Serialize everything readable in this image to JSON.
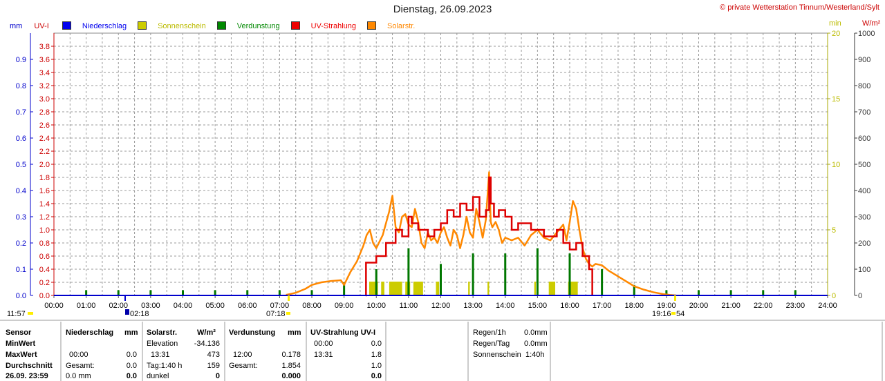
{
  "header": {
    "title": "Dienstag, 26.09.2023",
    "copyright": "© private Wetterstation Tinnum/Westerland/Sylt"
  },
  "colors": {
    "precip": "#0000cc",
    "sunshine": "#cccc00",
    "evap": "#007700",
    "uv": "#dd0000",
    "solar": "#ff8800"
  },
  "legend": [
    {
      "label": "Niederschlag",
      "color": "#0000ee"
    },
    {
      "label": "Sonnenschein",
      "color": "#cccc00",
      "text_color": "#bbbb00"
    },
    {
      "label": "Verdunstung",
      "color": "#008800"
    },
    {
      "label": "UV-Strahlung",
      "color": "#ee0000"
    },
    {
      "label": "Solarstr.",
      "color": "#ff8800"
    }
  ],
  "axes": {
    "left_unit_1": "mm",
    "left_unit_2": "UV-I",
    "right_unit_1": "min",
    "right_unit_2": "W/m²",
    "mm_ticks": [
      "0.0",
      "0.1",
      "0.2",
      "0.3",
      "0.4",
      "0.5",
      "0.6",
      "0.7",
      "0.8",
      "0.9"
    ],
    "uv_ticks": [
      "0.0",
      "0.2",
      "0.4",
      "0.6",
      "0.8",
      "1.0",
      "1.2",
      "1.4",
      "1.6",
      "1.8",
      "2.0",
      "2.2",
      "2.4",
      "2.6",
      "2.8",
      "3.0",
      "3.2",
      "3.4",
      "3.6",
      "3.8"
    ],
    "min_ticks": [
      "0",
      "5",
      "10",
      "15",
      "20"
    ],
    "wm2_ticks": [
      "0",
      "100",
      "200",
      "300",
      "400",
      "500",
      "600",
      "700",
      "800",
      "900",
      "1000"
    ],
    "x_ticks": [
      "00:00",
      "01:00",
      "02:00",
      "03:00",
      "04:00",
      "05:00",
      "06:00",
      "07:00",
      "08:00",
      "09:00",
      "10:00",
      "11:00",
      "12:00",
      "13:00",
      "14:00",
      "15:00",
      "16:00",
      "17:00",
      "18:00",
      "19:00",
      "20:00",
      "21:00",
      "22:00",
      "23:00",
      "24:00"
    ]
  },
  "below_axis": {
    "moonrise": "11:57",
    "moonset": "02:18",
    "sunrise": "07:18",
    "sunset": "19:16",
    "sunset_suffix": "54"
  },
  "chart_data": {
    "type": "line",
    "title": "Dienstag, 26.09.2023",
    "xlabel": "",
    "xlim": [
      "00:00",
      "24:00"
    ],
    "ylim_mm": [
      0,
      1.0
    ],
    "ylim_uv": [
      0,
      4.0
    ],
    "ylim_min": [
      0,
      20
    ],
    "ylim_wm2": [
      0,
      1000
    ],
    "grid": true,
    "series": [
      {
        "name": "Solarstr.",
        "axis": "W/m²",
        "x": [
          7.2,
          7.5,
          7.8,
          8.0,
          8.3,
          8.6,
          8.9,
          9.0,
          9.2,
          9.4,
          9.6,
          9.7,
          9.8,
          9.9,
          10.0,
          10.2,
          10.4,
          10.5,
          10.6,
          10.7,
          10.8,
          10.9,
          11.0,
          11.1,
          11.2,
          11.3,
          11.4,
          11.5,
          11.6,
          11.7,
          11.8,
          11.9,
          12.0,
          12.1,
          12.2,
          12.3,
          12.4,
          12.5,
          12.6,
          12.7,
          12.8,
          12.9,
          13.0,
          13.1,
          13.2,
          13.3,
          13.4,
          13.5,
          13.55,
          13.6,
          13.7,
          13.8,
          13.9,
          14.0,
          14.2,
          14.4,
          14.6,
          14.8,
          15.0,
          15.2,
          15.4,
          15.6,
          15.8,
          15.9,
          16.0,
          16.1,
          16.2,
          16.3,
          16.4,
          16.5,
          16.6,
          16.7,
          16.8,
          17.0,
          17.2,
          17.4,
          17.6,
          17.8,
          18.0,
          18.3,
          18.6,
          18.9,
          19.1,
          19.3
        ],
        "values": [
          2,
          10,
          25,
          40,
          50,
          55,
          58,
          40,
          90,
          130,
          190,
          230,
          250,
          200,
          180,
          230,
          320,
          380,
          260,
          240,
          300,
          310,
          270,
          260,
          330,
          280,
          200,
          180,
          240,
          210,
          220,
          200,
          240,
          260,
          220,
          190,
          250,
          230,
          180,
          230,
          300,
          240,
          220,
          330,
          280,
          220,
          290,
          470,
          280,
          260,
          280,
          250,
          200,
          220,
          210,
          220,
          190,
          230,
          250,
          220,
          210,
          240,
          270,
          210,
          280,
          360,
          330,
          250,
          180,
          140,
          120,
          110,
          120,
          115,
          95,
          80,
          65,
          50,
          35,
          22,
          12,
          5,
          2,
          0
        ]
      },
      {
        "name": "UV-Strahlung",
        "axis": "UV-I",
        "x": [
          9.67,
          9.68,
          10.0,
          10.3,
          10.4,
          10.6,
          10.8,
          11.0,
          11.1,
          11.3,
          11.5,
          11.6,
          11.8,
          12.0,
          12.2,
          12.4,
          12.6,
          12.8,
          13.0,
          13.2,
          13.4,
          13.5,
          13.55,
          13.65,
          13.8,
          14.0,
          14.2,
          14.4,
          14.6,
          14.8,
          15.0,
          15.2,
          15.4,
          15.6,
          15.8,
          16.0,
          16.2,
          16.4,
          16.6,
          16.68,
          16.7
        ],
        "values": [
          0,
          0.5,
          0.6,
          0.8,
          0.8,
          1.0,
          0.9,
          1.2,
          1.1,
          1.0,
          1.0,
          0.9,
          1.0,
          1.1,
          1.3,
          1.2,
          1.4,
          1.3,
          1.5,
          1.2,
          1.3,
          1.8,
          1.4,
          1.2,
          1.3,
          1.2,
          1.0,
          1.1,
          1.1,
          1.0,
          1.0,
          0.9,
          0.9,
          1.0,
          0.8,
          0.7,
          0.8,
          0.6,
          0.4,
          0.4,
          0
        ]
      },
      {
        "name": "Sonnenschein",
        "axis": "min",
        "bars": [
          {
            "start": 9.78,
            "end": 10.05,
            "value": 1
          },
          {
            "start": 10.15,
            "end": 10.25,
            "value": 1
          },
          {
            "start": 10.4,
            "end": 10.8,
            "value": 1
          },
          {
            "start": 10.9,
            "end": 11.05,
            "value": 1
          },
          {
            "start": 11.15,
            "end": 11.45,
            "value": 1
          },
          {
            "start": 11.85,
            "end": 11.95,
            "value": 1
          },
          {
            "start": 12.85,
            "end": 12.9,
            "value": 1
          },
          {
            "start": 13.45,
            "end": 13.5,
            "value": 1
          },
          {
            "start": 14.9,
            "end": 14.95,
            "value": 1
          },
          {
            "start": 15.35,
            "end": 15.55,
            "value": 1
          },
          {
            "start": 15.95,
            "end": 16.25,
            "value": 1
          }
        ]
      },
      {
        "name": "Verdunstung",
        "axis": "mm",
        "x": [
          1,
          2,
          3,
          4,
          5,
          6,
          7,
          8,
          9,
          10,
          11,
          12,
          13,
          14,
          15,
          16,
          17,
          18,
          19,
          20,
          21,
          22,
          23
        ],
        "values": [
          0.02,
          0.02,
          0.02,
          0.02,
          0.02,
          0.02,
          0.02,
          0.02,
          0.05,
          0.1,
          0.18,
          0.12,
          0.16,
          0.16,
          0.18,
          0.16,
          0.1,
          0.04,
          0.02,
          0.02,
          0.02,
          0.02,
          0.02
        ]
      },
      {
        "name": "Niederschlag",
        "axis": "mm",
        "x": [],
        "values": []
      }
    ]
  },
  "stats": {
    "col_sensor": {
      "h": "Sensor",
      "r1": "MinWert",
      "r2": "MaxWert",
      "r3": "Durchschnitt",
      "r4": "26.09.  23:59"
    },
    "niederschlag": {
      "h": "Niederschlag",
      "unit": "mm",
      "r2a": "00:00",
      "r2b": "0.0",
      "r3a": "Gesamt:",
      "r3b": "0.0",
      "r4a": "0.0 mm",
      "r4b": "0.0"
    },
    "solar": {
      "h": "Solarstr.",
      "unit": "W/m²",
      "r1a": "Elevation",
      "r1b": "-34.136",
      "r2a": "13:31",
      "r2b": "473",
      "r3a": "Tag:1:40 h",
      "r3b": "159",
      "r4a": "dunkel",
      "r4b": "0"
    },
    "verdunstung": {
      "h": "Verdunstung",
      "unit": "mm",
      "r2a": "12:00",
      "r2b": "0.178",
      "r3a": "Gesamt:",
      "r3b": "1.854",
      "r4b": "0.000"
    },
    "uv": {
      "h": "UV-Strahlung UV-I",
      "r1a": "00:00",
      "r1b": "0.0",
      "r2a": "13:31",
      "r2b": "1.8",
      "r3b": "1.0",
      "r4b": "0.0"
    },
    "rain": {
      "l1": "Regen/1h",
      "v1": "0.0mm",
      "l2": "Regen/Tag",
      "v2": "0.0mm",
      "l3": "Sonnenschein",
      "v3": "1:40h"
    }
  }
}
